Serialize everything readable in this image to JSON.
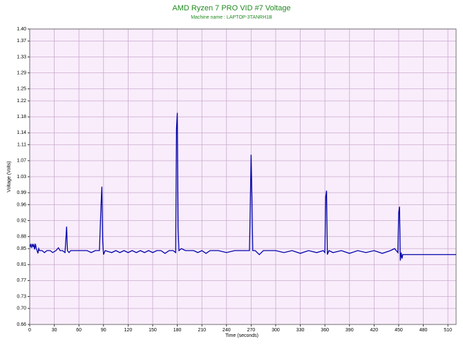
{
  "chart_data": {
    "type": "line",
    "title": "AMD Ryzen 7 PRO VID #7 Voltage",
    "subtitle": "Machine name : LAPTOP-3TANRH1B",
    "x_label": "Time (seconds)",
    "y_label": "Voltage (Volts)",
    "color": "#0000aa",
    "background": "#f9edfb",
    "grid": true,
    "xlim": [
      0,
      520
    ],
    "ylim": [
      0.66,
      1.4
    ],
    "xticks": [
      0,
      30,
      60,
      90,
      120,
      150,
      180,
      210,
      240,
      270,
      300,
      330,
      360,
      390,
      420,
      450,
      480,
      510
    ],
    "yticks": [
      0.66,
      {
        "value": 0.7,
        "label": "0.70"
      },
      0.73,
      0.77,
      0.81,
      0.85,
      0.88,
      0.92,
      0.96,
      0.99,
      1.03,
      1.07,
      1.11,
      1.14,
      1.18,
      1.22,
      1.25,
      1.29,
      1.33,
      1.37,
      {
        "value": 1.4,
        "label": "1.40"
      }
    ],
    "x": [
      0,
      1,
      2,
      3,
      4,
      5,
      6,
      7,
      8,
      9,
      10,
      11,
      12,
      15,
      18,
      21,
      25,
      28,
      32,
      35,
      37,
      40,
      43,
      44,
      45,
      46,
      48,
      50,
      60,
      70,
      75,
      80,
      85,
      87,
      88,
      89,
      90,
      92,
      100,
      105,
      110,
      115,
      120,
      125,
      130,
      135,
      140,
      145,
      150,
      155,
      160,
      165,
      170,
      175,
      178,
      179,
      180,
      181,
      182,
      185,
      190,
      200,
      205,
      210,
      215,
      220,
      230,
      240,
      250,
      260,
      268,
      269,
      270,
      271,
      272,
      275,
      280,
      285,
      290,
      300,
      310,
      320,
      330,
      340,
      350,
      358,
      360,
      361,
      362,
      363,
      365,
      370,
      380,
      390,
      400,
      410,
      420,
      430,
      440,
      445,
      449,
      450,
      451,
      452,
      453,
      454,
      455,
      520
    ],
    "values": [
      0.855,
      0.86,
      0.852,
      0.862,
      0.855,
      0.86,
      0.848,
      0.862,
      0.85,
      0.845,
      0.838,
      0.85,
      0.845,
      0.845,
      0.84,
      0.845,
      0.845,
      0.84,
      0.845,
      0.852,
      0.845,
      0.845,
      0.84,
      0.87,
      0.905,
      0.845,
      0.84,
      0.845,
      0.845,
      0.845,
      0.84,
      0.845,
      0.845,
      0.96,
      1.005,
      0.87,
      0.835,
      0.845,
      0.84,
      0.845,
      0.84,
      0.845,
      0.84,
      0.845,
      0.84,
      0.845,
      0.84,
      0.845,
      0.84,
      0.845,
      0.845,
      0.838,
      0.845,
      0.845,
      0.84,
      1.15,
      1.19,
      0.9,
      0.845,
      0.85,
      0.845,
      0.845,
      0.84,
      0.845,
      0.838,
      0.845,
      0.845,
      0.84,
      0.845,
      0.845,
      0.845,
      0.96,
      1.085,
      0.98,
      0.845,
      0.845,
      0.835,
      0.845,
      0.845,
      0.845,
      0.84,
      0.845,
      0.838,
      0.845,
      0.84,
      0.845,
      0.84,
      0.98,
      0.995,
      0.835,
      0.845,
      0.84,
      0.845,
      0.838,
      0.845,
      0.84,
      0.845,
      0.838,
      0.845,
      0.85,
      0.84,
      0.94,
      0.955,
      0.82,
      0.84,
      0.825,
      0.835,
      0.835
    ]
  }
}
